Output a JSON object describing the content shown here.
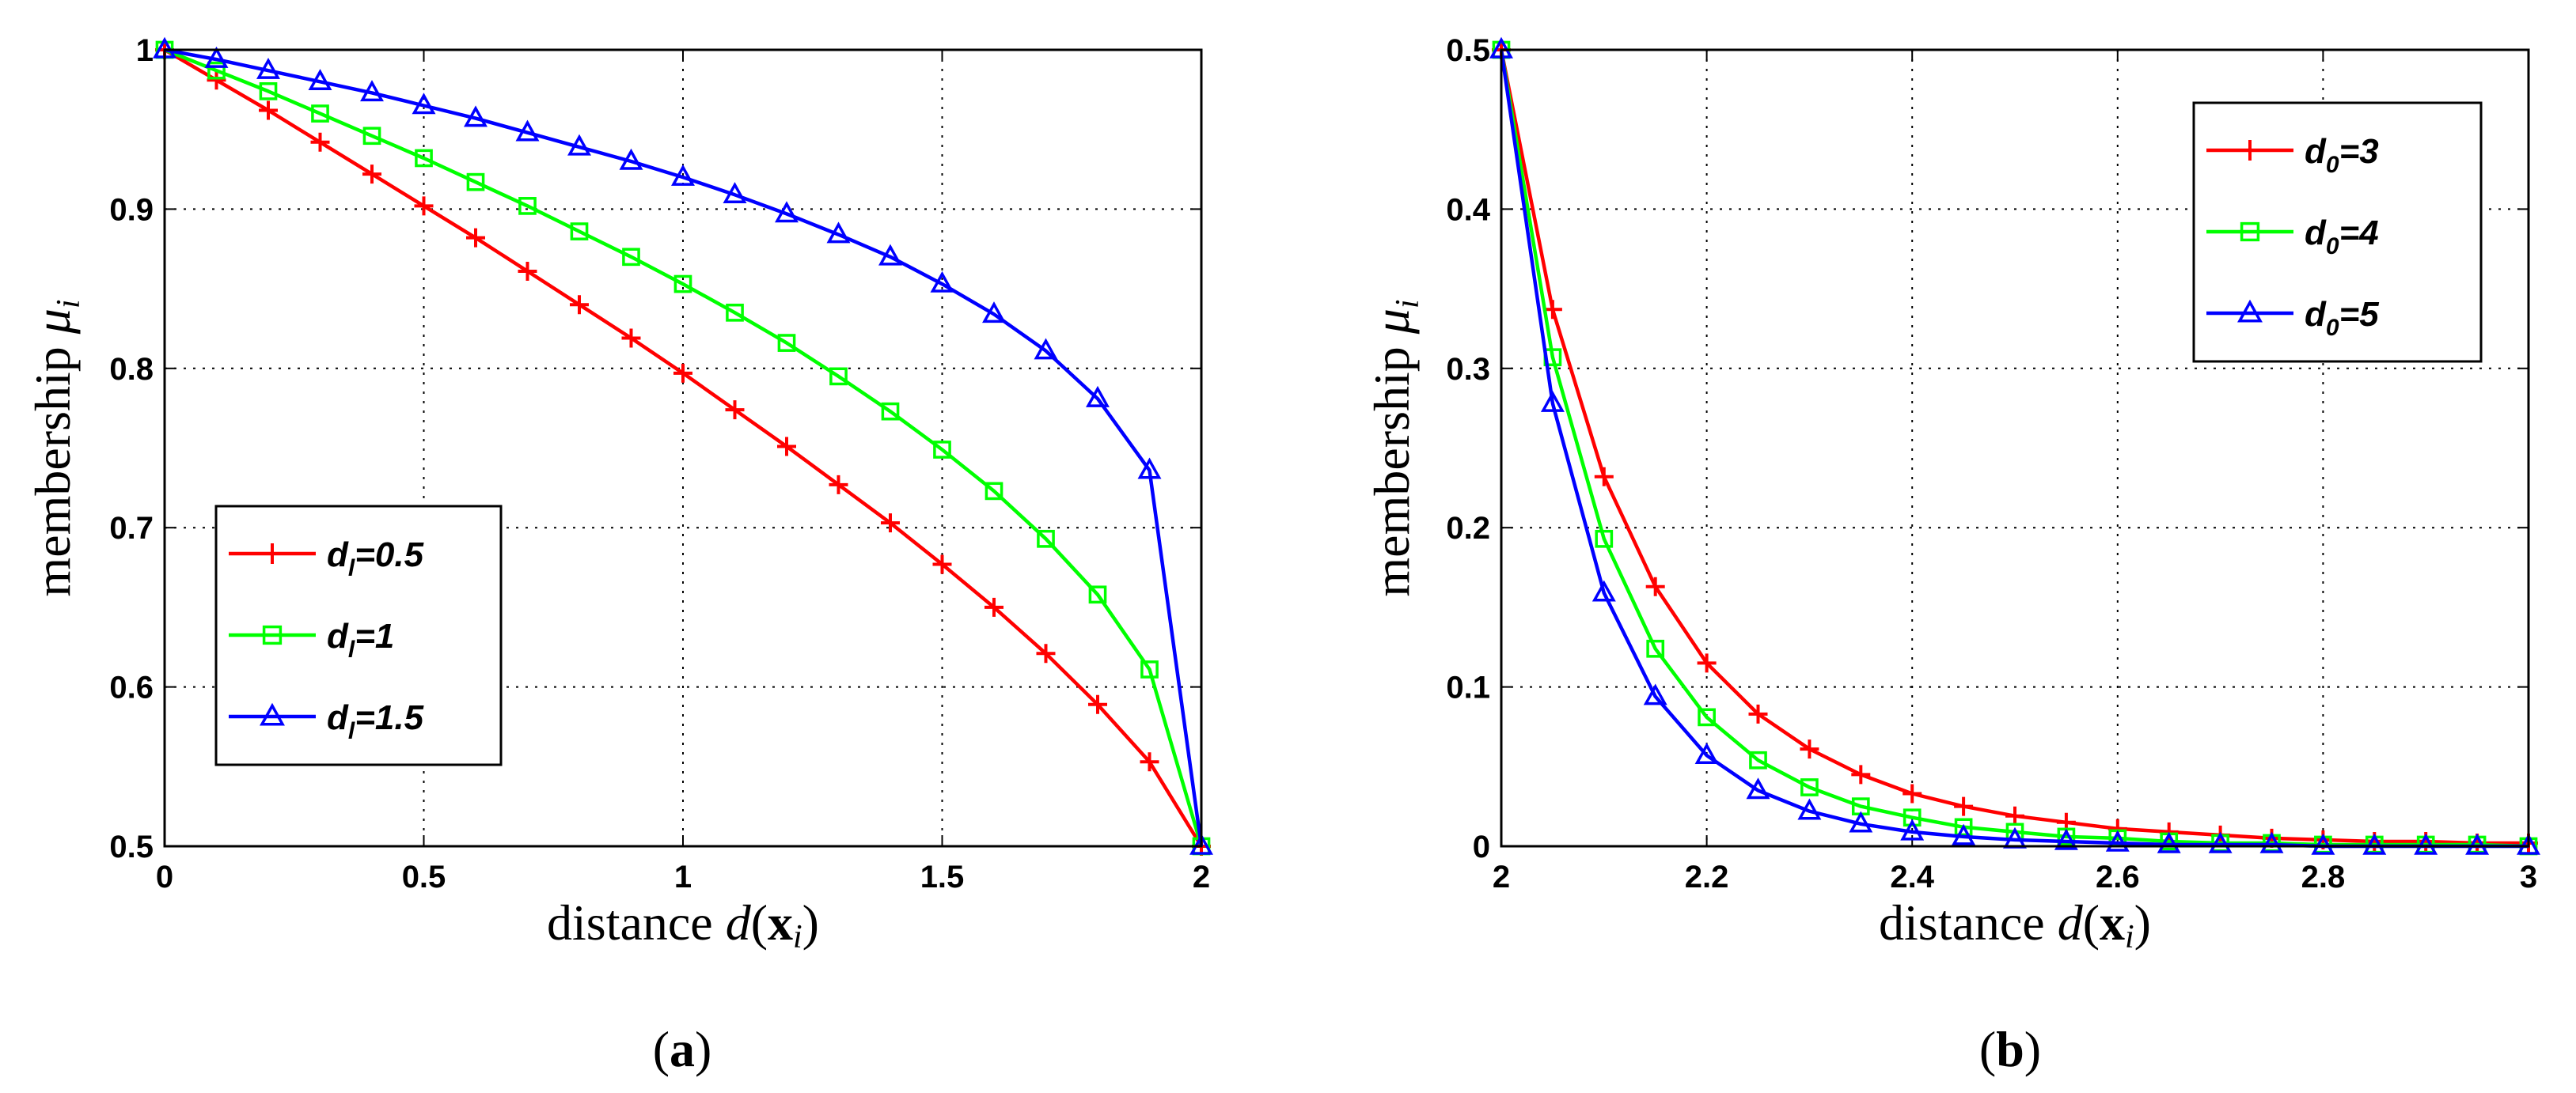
{
  "chart_data": [
    {
      "type": "line",
      "panel_label": {
        "open": "(",
        "letter": "a",
        "close": ")"
      },
      "xlabel": {
        "text": "distance ",
        "func": "d",
        "paren_open": "(",
        "bold": "x",
        "sub": "i",
        "paren_close": ")"
      },
      "ylabel": {
        "text": "membership ",
        "symbol": "μ",
        "sub": "i"
      },
      "xlim": [
        0,
        2
      ],
      "ylim": [
        0.5,
        1
      ],
      "xticks": [
        0,
        0.5,
        1,
        1.5,
        2
      ],
      "xtick_labels": [
        "0",
        "0.5",
        "1",
        "1.5",
        "2"
      ],
      "yticks": [
        0.5,
        0.6,
        0.7,
        0.8,
        0.9,
        1
      ],
      "ytick_labels": [
        "0.5",
        "0.6",
        "0.7",
        "0.8",
        "0.9",
        "1"
      ],
      "grid": true,
      "legend_position": "lower-left",
      "x": [
        0,
        0.1,
        0.2,
        0.3,
        0.4,
        0.5,
        0.6,
        0.7,
        0.8,
        0.9,
        1.0,
        1.1,
        1.2,
        1.3,
        1.4,
        1.5,
        1.6,
        1.7,
        1.8,
        1.9,
        2.0
      ],
      "series": [
        {
          "name_main": "d",
          "name_sub": "l",
          "name_rest": "=0.5",
          "color": "#ff0000",
          "marker": "plus",
          "values": [
            1.0,
            0.981,
            0.962,
            0.942,
            0.922,
            0.902,
            0.882,
            0.861,
            0.84,
            0.819,
            0.797,
            0.774,
            0.751,
            0.727,
            0.703,
            0.677,
            0.65,
            0.621,
            0.589,
            0.553,
            0.5
          ]
        },
        {
          "name_main": "d",
          "name_sub": "l",
          "name_rest": "=1",
          "color": "#00ff00",
          "marker": "square",
          "values": [
            1.0,
            0.987,
            0.974,
            0.96,
            0.946,
            0.932,
            0.917,
            0.902,
            0.886,
            0.87,
            0.853,
            0.835,
            0.816,
            0.795,
            0.773,
            0.749,
            0.723,
            0.693,
            0.658,
            0.611,
            0.5
          ]
        },
        {
          "name_main": "d",
          "name_sub": "l",
          "name_rest": "=1.5",
          "color": "#0000ff",
          "marker": "triangle",
          "values": [
            1.0,
            0.994,
            0.987,
            0.98,
            0.973,
            0.965,
            0.957,
            0.948,
            0.939,
            0.93,
            0.92,
            0.909,
            0.897,
            0.884,
            0.87,
            0.853,
            0.834,
            0.811,
            0.781,
            0.736,
            0.5
          ]
        }
      ]
    },
    {
      "type": "line",
      "panel_label": {
        "open": "(",
        "letter": "b",
        "close": ")"
      },
      "xlabel": {
        "text": "distance ",
        "func": "d",
        "paren_open": "(",
        "bold": "x",
        "sub": "i",
        "paren_close": ")"
      },
      "ylabel": {
        "text": "membership ",
        "symbol": "μ",
        "sub": "i"
      },
      "xlim": [
        2,
        3
      ],
      "ylim": [
        0,
        0.5
      ],
      "xticks": [
        2,
        2.2,
        2.4,
        2.6,
        2.8,
        3
      ],
      "xtick_labels": [
        "2",
        "2.2",
        "2.4",
        "2.6",
        "2.8",
        "3"
      ],
      "yticks": [
        0,
        0.1,
        0.2,
        0.3,
        0.4,
        0.5
      ],
      "ytick_labels": [
        "0",
        "0.1",
        "0.2",
        "0.3",
        "0.4",
        "0.5"
      ],
      "grid": true,
      "legend_position": "top-right",
      "x": [
        2.0,
        2.05,
        2.1,
        2.15,
        2.2,
        2.25,
        2.3,
        2.35,
        2.4,
        2.45,
        2.5,
        2.55,
        2.6,
        2.65,
        2.7,
        2.75,
        2.8,
        2.85,
        2.9,
        2.95,
        3.0
      ],
      "series": [
        {
          "name_main": "d",
          "name_sub": "0",
          "name_rest": "=3",
          "color": "#ff0000",
          "marker": "plus",
          "values": [
            0.5,
            0.337,
            0.232,
            0.163,
            0.115,
            0.083,
            0.061,
            0.045,
            0.033,
            0.025,
            0.019,
            0.015,
            0.011,
            0.009,
            0.007,
            0.005,
            0.004,
            0.003,
            0.003,
            0.002,
            0.002
          ]
        },
        {
          "name_main": "d",
          "name_sub": "0",
          "name_rest": "=4",
          "color": "#00ff00",
          "marker": "square",
          "values": [
            0.5,
            0.307,
            0.193,
            0.124,
            0.081,
            0.054,
            0.037,
            0.025,
            0.018,
            0.012,
            0.009,
            0.006,
            0.005,
            0.003,
            0.002,
            0.002,
            0.001,
            0.001,
            0.001,
            0.001,
            0.0
          ]
        },
        {
          "name_main": "d",
          "name_sub": "0",
          "name_rest": "=5",
          "color": "#0000ff",
          "marker": "triangle",
          "values": [
            0.5,
            0.278,
            0.159,
            0.094,
            0.057,
            0.035,
            0.022,
            0.014,
            0.009,
            0.006,
            0.004,
            0.003,
            0.002,
            0.001,
            0.001,
            0.001,
            0.0,
            0.0,
            0.0,
            0.0,
            0.0
          ]
        }
      ]
    }
  ]
}
